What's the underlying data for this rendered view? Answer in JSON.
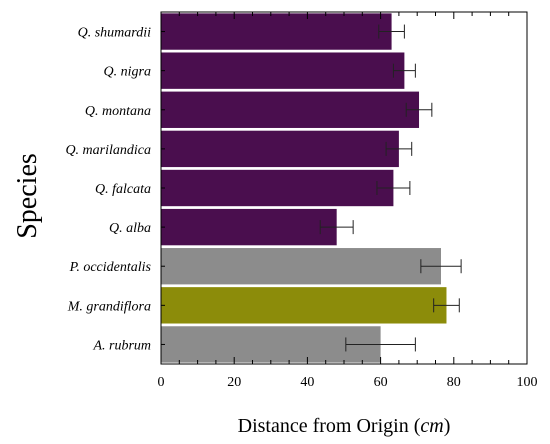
{
  "chart_data": {
    "type": "bar",
    "orientation": "horizontal",
    "categories": [
      "Q. shumardii",
      "Q. nigra",
      "Q. montana",
      "Q. marilandica",
      "Q. falcata",
      "Q. alba",
      "P. occidentalis",
      "M. grandiflora",
      "A. rubrum"
    ],
    "values": [
      63,
      66.5,
      70.5,
      65,
      63.5,
      48,
      76.5,
      78,
      60
    ],
    "errors": [
      3.5,
      3,
      3.5,
      3.5,
      4.5,
      4.5,
      5.5,
      3.5,
      9.5
    ],
    "colors": [
      "#4a0e4e",
      "#4a0e4e",
      "#4a0e4e",
      "#4a0e4e",
      "#4a0e4e",
      "#4a0e4e",
      "#8c8c8c",
      "#8c8c0a",
      "#8c8c8c"
    ],
    "xlabel": "Distance from Origin (cm)",
    "xlabel_main": "Distance from Origin (",
    "xlabel_unit": "cm",
    "xlabel_close": ")",
    "ylabel": "Species",
    "xlim": [
      0,
      100
    ],
    "xticks": [
      0,
      20,
      40,
      60,
      80,
      100
    ],
    "minor_step": 5,
    "grid": false
  }
}
